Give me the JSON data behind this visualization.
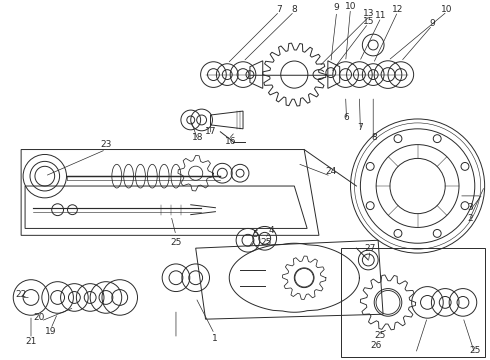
{
  "bg_color": "#ffffff",
  "line_color": "#2a2a2a",
  "figsize": [
    4.9,
    3.6
  ],
  "dpi": 100,
  "font_size": 6.5,
  "line_width": 0.7
}
